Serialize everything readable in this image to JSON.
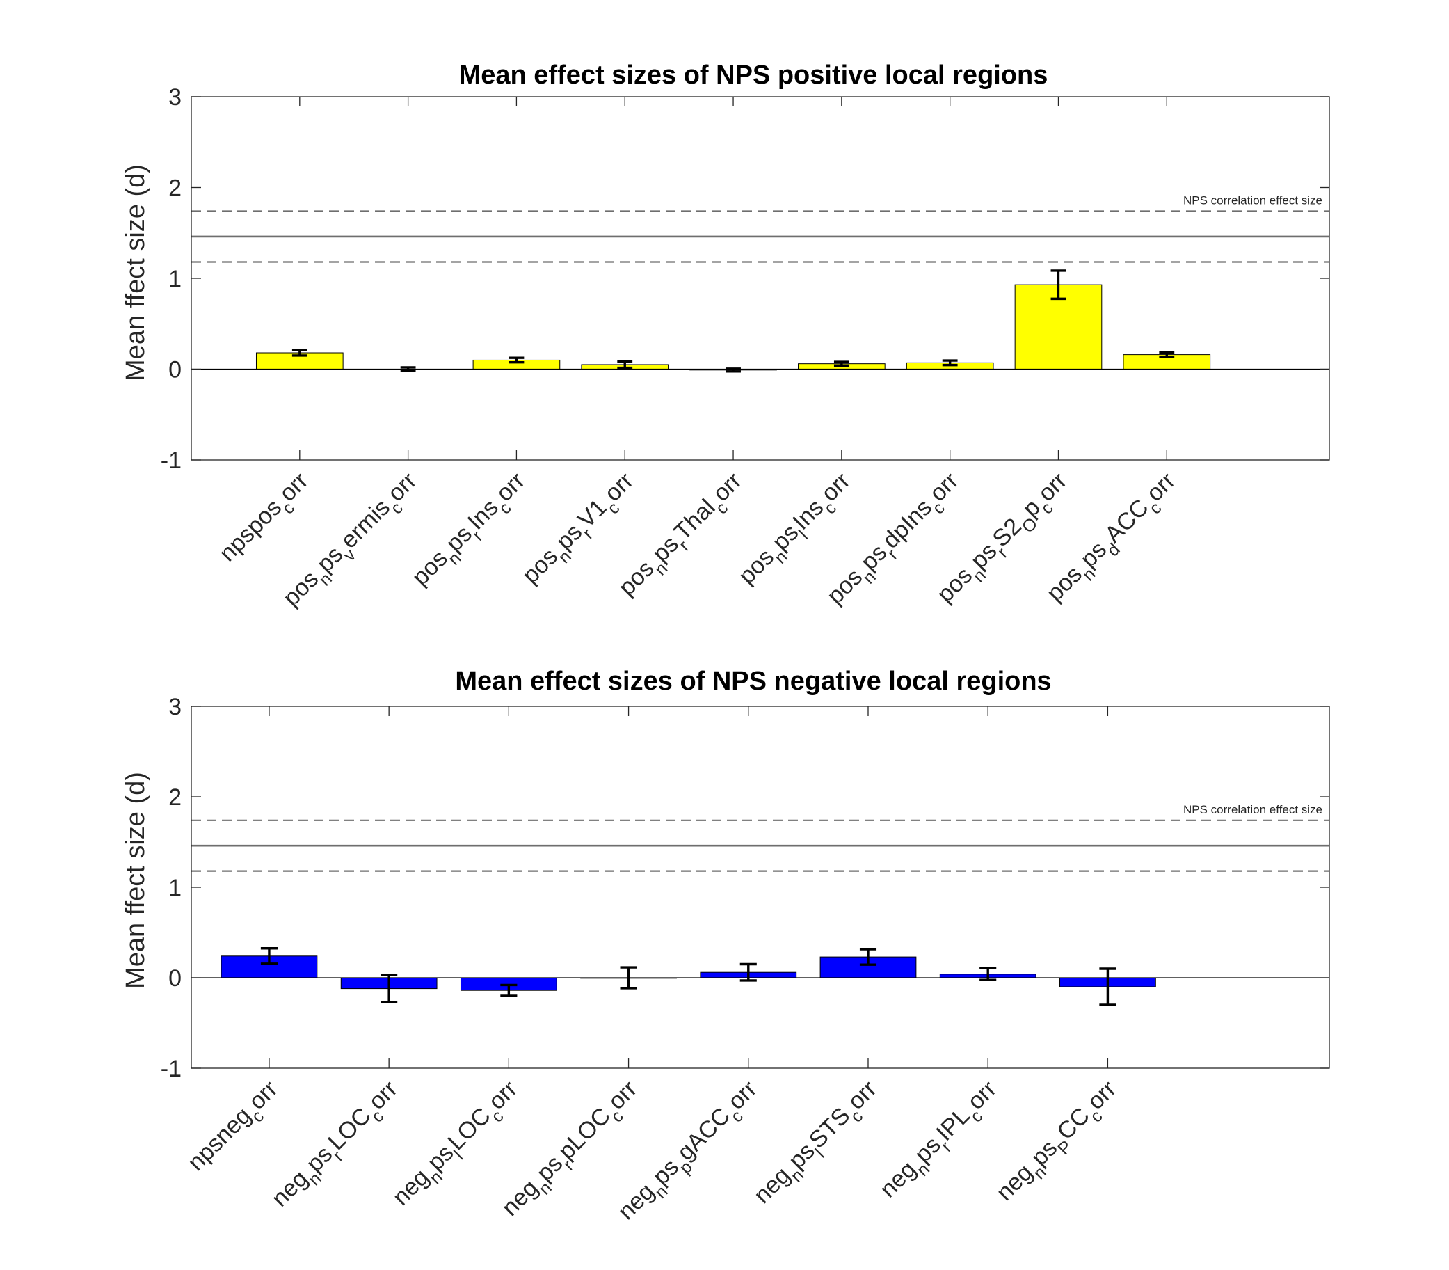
{
  "chart_data": [
    {
      "type": "bar",
      "title": "Mean effect sizes of NPS positive local regions",
      "ylabel": "Mean ffect size (d)",
      "xlabel": "",
      "ylim": [
        -1,
        3
      ],
      "yticks": [
        "-1",
        "0",
        "1",
        "2",
        "3"
      ],
      "grid": false,
      "bar_color": "#ffff00",
      "categories": [
        {
          "segs": [
            {
              "t": "npspos"
            },
            {
              "t": "c",
              "s": "sub"
            },
            {
              "t": "orr"
            }
          ]
        },
        {
          "segs": [
            {
              "t": "pos"
            },
            {
              "t": "n",
              "s": "sub"
            },
            {
              "t": "ps"
            },
            {
              "t": "v",
              "s": "sub"
            },
            {
              "t": "ermis"
            },
            {
              "t": "c",
              "s": "sub"
            },
            {
              "t": "orr"
            }
          ]
        },
        {
          "segs": [
            {
              "t": "pos"
            },
            {
              "t": "n",
              "s": "sub"
            },
            {
              "t": "ps"
            },
            {
              "t": "r",
              "s": "sub"
            },
            {
              "t": "Ins"
            },
            {
              "t": "c",
              "s": "sub"
            },
            {
              "t": "orr"
            }
          ]
        },
        {
          "segs": [
            {
              "t": "pos"
            },
            {
              "t": "n",
              "s": "sub"
            },
            {
              "t": "ps"
            },
            {
              "t": "r",
              "s": "sub"
            },
            {
              "t": "V1"
            },
            {
              "t": "c",
              "s": "sub"
            },
            {
              "t": "orr"
            }
          ]
        },
        {
          "segs": [
            {
              "t": "pos"
            },
            {
              "t": "n",
              "s": "sub"
            },
            {
              "t": "ps"
            },
            {
              "t": "r",
              "s": "sub"
            },
            {
              "t": "Thal"
            },
            {
              "t": "c",
              "s": "sub"
            },
            {
              "t": "orr"
            }
          ]
        },
        {
          "segs": [
            {
              "t": "pos"
            },
            {
              "t": "n",
              "s": "sub"
            },
            {
              "t": "ps"
            },
            {
              "t": "l",
              "s": "sub"
            },
            {
              "t": "Ins"
            },
            {
              "t": "c",
              "s": "sub"
            },
            {
              "t": "orr"
            }
          ]
        },
        {
          "segs": [
            {
              "t": "pos"
            },
            {
              "t": "n",
              "s": "sub"
            },
            {
              "t": "ps"
            },
            {
              "t": "r",
              "s": "sub"
            },
            {
              "t": "dpIns"
            },
            {
              "t": "c",
              "s": "sub"
            },
            {
              "t": "orr"
            }
          ]
        },
        {
          "segs": [
            {
              "t": "pos"
            },
            {
              "t": "n",
              "s": "sub"
            },
            {
              "t": "ps"
            },
            {
              "t": "r",
              "s": "sub"
            },
            {
              "t": "S2"
            },
            {
              "t": "O",
              "s": "sub"
            },
            {
              "t": "p"
            },
            {
              "t": "c",
              "s": "sub"
            },
            {
              "t": "orr"
            }
          ]
        },
        {
          "segs": [
            {
              "t": "pos"
            },
            {
              "t": "n",
              "s": "sub"
            },
            {
              "t": "ps"
            },
            {
              "t": "d",
              "s": "sub"
            },
            {
              "t": "ACC"
            },
            {
              "t": "c",
              "s": "sub"
            },
            {
              "t": "orr"
            }
          ]
        }
      ],
      "values": [
        0.18,
        0.0,
        0.1,
        0.05,
        -0.01,
        0.06,
        0.07,
        0.93,
        0.16
      ],
      "errors": [
        0.03,
        0.02,
        0.025,
        0.035,
        0.015,
        0.02,
        0.025,
        0.155,
        0.025
      ],
      "reference": {
        "label": "NPS correlation effect size",
        "mean": 1.46,
        "upper": 1.74,
        "lower": 1.18
      }
    },
    {
      "type": "bar",
      "title": "Mean effect sizes of NPS negative local regions",
      "ylabel": "Mean ffect size (d)",
      "xlabel": "",
      "ylim": [
        -1,
        3
      ],
      "yticks": [
        "-1",
        "0",
        "1",
        "2",
        "3"
      ],
      "grid": false,
      "bar_color": "#0000ff",
      "categories": [
        {
          "segs": [
            {
              "t": "npsneg"
            },
            {
              "t": "c",
              "s": "sub"
            },
            {
              "t": "orr"
            }
          ]
        },
        {
          "segs": [
            {
              "t": "neg"
            },
            {
              "t": "n",
              "s": "sub"
            },
            {
              "t": "ps"
            },
            {
              "t": "r",
              "s": "sub"
            },
            {
              "t": "LOC"
            },
            {
              "t": "c",
              "s": "sub"
            },
            {
              "t": "orr"
            }
          ]
        },
        {
          "segs": [
            {
              "t": "neg"
            },
            {
              "t": "n",
              "s": "sub"
            },
            {
              "t": "ps"
            },
            {
              "t": "l",
              "s": "sub"
            },
            {
              "t": "LOC"
            },
            {
              "t": "c",
              "s": "sub"
            },
            {
              "t": "orr"
            }
          ]
        },
        {
          "segs": [
            {
              "t": "neg"
            },
            {
              "t": "n",
              "s": "sub"
            },
            {
              "t": "ps"
            },
            {
              "t": "r",
              "s": "sub"
            },
            {
              "t": "pLOC"
            },
            {
              "t": "c",
              "s": "sub"
            },
            {
              "t": "orr"
            }
          ]
        },
        {
          "segs": [
            {
              "t": "neg"
            },
            {
              "t": "n",
              "s": "sub"
            },
            {
              "t": "ps"
            },
            {
              "t": "p",
              "s": "sub"
            },
            {
              "t": "gACC"
            },
            {
              "t": "c",
              "s": "sub"
            },
            {
              "t": "orr"
            }
          ]
        },
        {
          "segs": [
            {
              "t": "neg"
            },
            {
              "t": "n",
              "s": "sub"
            },
            {
              "t": "ps"
            },
            {
              "t": "l",
              "s": "sub"
            },
            {
              "t": "STS"
            },
            {
              "t": "c",
              "s": "sub"
            },
            {
              "t": "orr"
            }
          ]
        },
        {
          "segs": [
            {
              "t": "neg"
            },
            {
              "t": "n",
              "s": "sub"
            },
            {
              "t": "ps"
            },
            {
              "t": "r",
              "s": "sub"
            },
            {
              "t": "IPL"
            },
            {
              "t": "c",
              "s": "sub"
            },
            {
              "t": "orr"
            }
          ]
        },
        {
          "segs": [
            {
              "t": "neg"
            },
            {
              "t": "n",
              "s": "sub"
            },
            {
              "t": "ps"
            },
            {
              "t": "P",
              "s": "sub"
            },
            {
              "t": "CC"
            },
            {
              "t": "c",
              "s": "sub"
            },
            {
              "t": "orr"
            }
          ]
        }
      ],
      "values": [
        0.24,
        -0.12,
        -0.14,
        0.0,
        0.06,
        0.23,
        0.04,
        -0.1
      ],
      "errors": [
        0.085,
        0.15,
        0.06,
        0.115,
        0.09,
        0.085,
        0.065,
        0.2
      ],
      "reference": {
        "label": "NPS correlation effect size",
        "mean": 1.46,
        "upper": 1.74,
        "lower": 1.18
      }
    }
  ]
}
